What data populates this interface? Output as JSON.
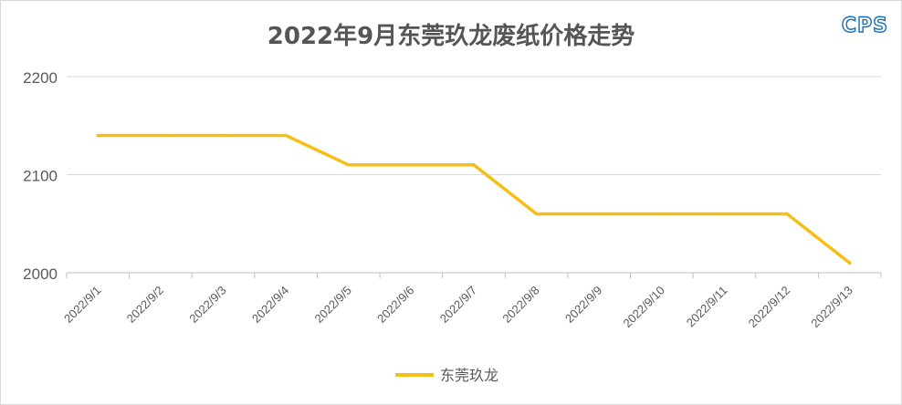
{
  "logo_text": "CPS",
  "chart_data": {
    "type": "line",
    "title": "2022年9月东莞玖龙废纸价格走势",
    "categories": [
      "2022/9/1",
      "2022/9/2",
      "2022/9/3",
      "2022/9/4",
      "2022/9/5",
      "2022/9/6",
      "2022/9/7",
      "2022/9/8",
      "2022/9/9",
      "2022/9/10",
      "2022/9/11",
      "2022/9/12",
      "2022/9/13"
    ],
    "series": [
      {
        "name": "东莞玖龙",
        "values": [
          2140,
          2140,
          2140,
          2140,
          2110,
          2110,
          2110,
          2060,
          2060,
          2060,
          2060,
          2060,
          2010
        ],
        "color": "#f5bf16"
      }
    ],
    "ylim": [
      2000,
      2200
    ],
    "yticks": [
      2000,
      2100,
      2200
    ],
    "grid": true,
    "legend_position": "bottom"
  }
}
